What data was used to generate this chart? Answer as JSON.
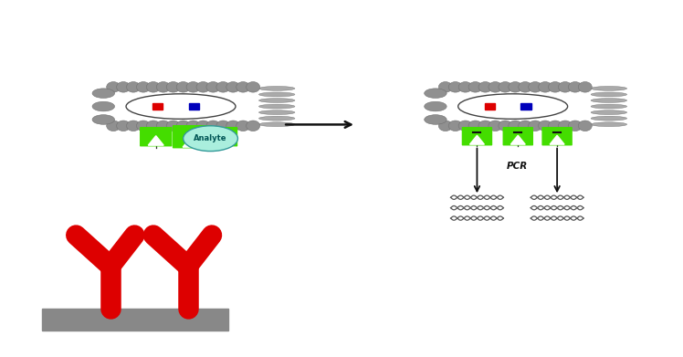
{
  "bg_color": "#ffffff",
  "fig_width": 7.48,
  "fig_height": 3.91,
  "dpi": 100,
  "gray_oval_color": "#909090",
  "gray_oval_edge": "#707070",
  "green_color": "#44dd00",
  "red_color": "#dd0000",
  "blue_color": "#0000bb",
  "analyte_fill": "#aaeedd",
  "analyte_edge": "#339999",
  "analyte_text": "Analyte",
  "pcr_text": "PCR",
  "arrow_color": "#111111",
  "gray_bar_color": "#888888",
  "dna_color": "#555555",
  "stack_color": "#aaaaaa",
  "inner_ellipse_color": "#444444",
  "line_color": "#333333"
}
